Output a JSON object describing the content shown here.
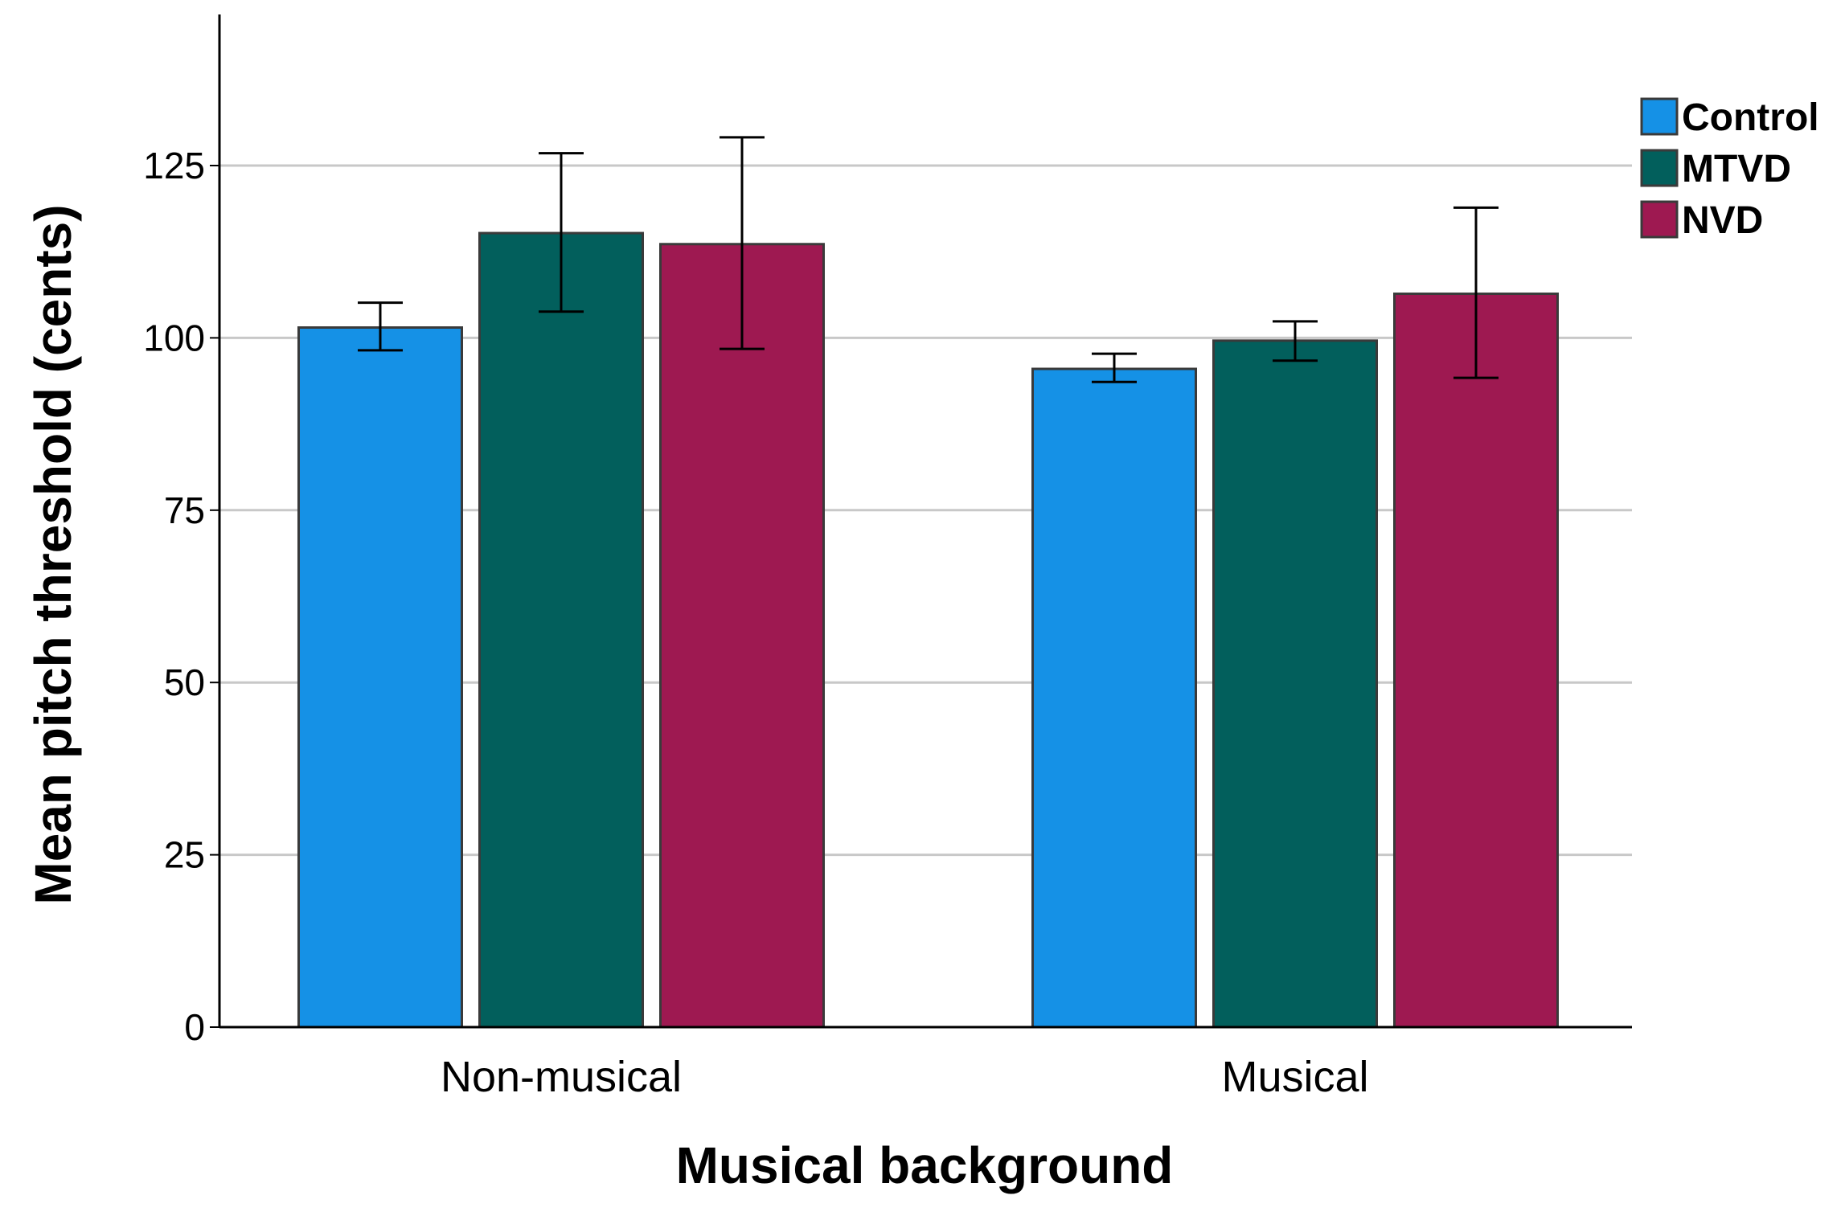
{
  "chart_data": {
    "type": "bar",
    "xlabel": "Musical background",
    "ylabel": "Mean pitch threshold (cents)",
    "categories": [
      "Non-musical",
      "Musical"
    ],
    "ylim": [
      0,
      147
    ],
    "yticks": [
      0,
      25,
      50,
      75,
      100,
      125
    ],
    "grid": true,
    "legend_position": "top-right",
    "series": [
      {
        "name": "Control",
        "color": "#1591E6",
        "values": [
          101.5,
          95.5
        ],
        "error_low": [
          98.2,
          93.6
        ],
        "error_high": [
          105.1,
          97.7
        ]
      },
      {
        "name": "MTVD",
        "color": "#025F5C",
        "values": [
          115.2,
          99.6
        ],
        "error_low": [
          103.8,
          96.7
        ],
        "error_high": [
          126.8,
          102.4
        ]
      },
      {
        "name": "NVD",
        "color": "#9E1951",
        "values": [
          113.6,
          106.4
        ],
        "error_low": [
          98.4,
          94.2
        ],
        "error_high": [
          129.1,
          118.9
        ]
      }
    ]
  }
}
